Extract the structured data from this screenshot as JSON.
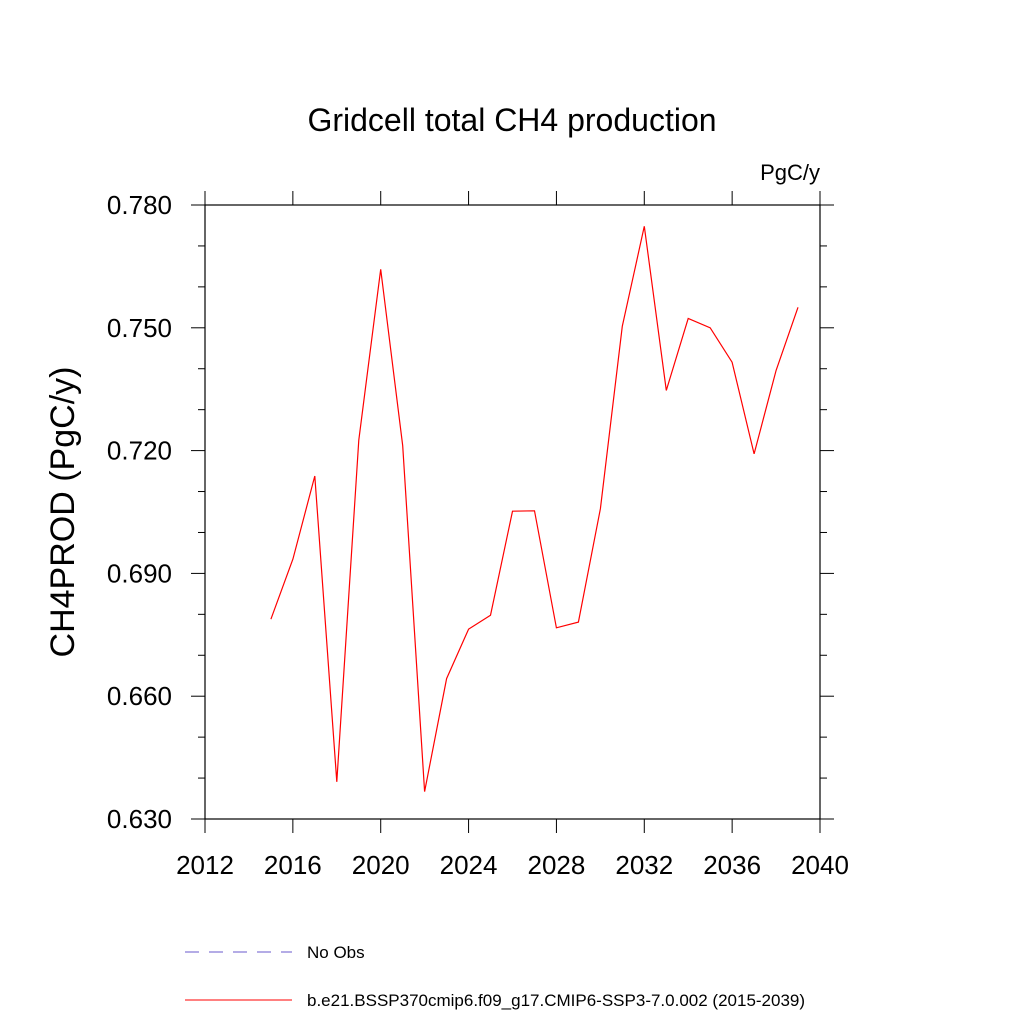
{
  "chart_data": {
    "type": "line",
    "title": "Gridcell total CH4 production",
    "units_label": "PgC/y",
    "ylabel": "CH4PROD  (PgC/y)",
    "xlabel": "",
    "xlim": [
      2012,
      2040
    ],
    "ylim": [
      0.63,
      0.78
    ],
    "x_ticks": [
      2012,
      2016,
      2020,
      2024,
      2028,
      2032,
      2036,
      2040
    ],
    "x_tick_labels": [
      "2012",
      "2016",
      "2020",
      "2024",
      "2028",
      "2032",
      "2036",
      "2040"
    ],
    "y_ticks": [
      0.63,
      0.66,
      0.69,
      0.72,
      0.75,
      0.78
    ],
    "y_tick_labels": [
      "0.630",
      "0.660",
      "0.690",
      "0.720",
      "0.750",
      "0.780"
    ],
    "grid": false,
    "legend_position": "bottom",
    "series": [
      {
        "name": "b.e21.BSSP370cmip6.f09_g17.CMIP6-SSP3-7.0.002 (2015-2039)",
        "color": "#ff0000",
        "style": "solid",
        "x": [
          2015,
          2016,
          2017,
          2018,
          2019,
          2020,
          2021,
          2022,
          2023,
          2024,
          2025,
          2026,
          2027,
          2028,
          2029,
          2030,
          2031,
          2032,
          2033,
          2034,
          2035,
          2036,
          2037,
          2038,
          2039
        ],
        "y": [
          0.6788,
          0.6935,
          0.7138,
          0.6391,
          0.7226,
          0.7643,
          0.7212,
          0.6367,
          0.6643,
          0.6764,
          0.6798,
          0.7052,
          0.7053,
          0.6767,
          0.6781,
          0.7058,
          0.7504,
          0.7748,
          0.7347,
          0.7523,
          0.75,
          0.7416,
          0.7192,
          0.7396,
          0.755
        ]
      }
    ],
    "legend": [
      {
        "label": "No Obs",
        "color": "#6a5acd",
        "style": "dashed"
      },
      {
        "label": "b.e21.BSSP370cmip6.f09_g17.CMIP6-SSP3-7.0.002 (2015-2039)",
        "color": "#ff0000",
        "style": "solid"
      }
    ]
  }
}
